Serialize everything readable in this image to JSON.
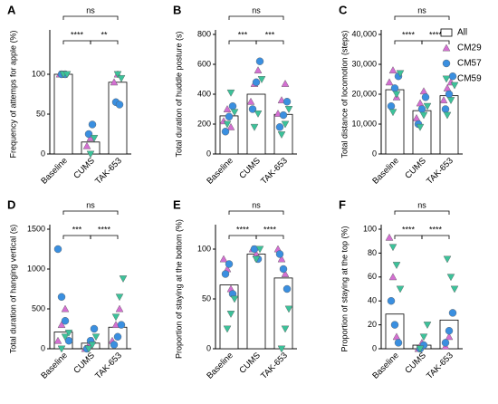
{
  "legend": {
    "items": [
      {
        "name": "All",
        "color": "#ffffff",
        "marker": "bar"
      },
      {
        "name": "CM29",
        "color": "#d46fd2",
        "marker": "triangle-up"
      },
      {
        "name": "CM57",
        "color": "#3a8fe0",
        "marker": "circle"
      },
      {
        "name": "CM59",
        "color": "#3cc29a",
        "marker": "triangle-down"
      }
    ]
  },
  "chart_data": [
    {
      "type": "bar",
      "panel": "A",
      "ylabel": "Frequency of attemps for apple (%)",
      "categories": [
        "Baseline",
        "CUMS",
        "TAK-653"
      ],
      "values": [
        100,
        15,
        90
      ],
      "ylim": [
        0,
        150
      ],
      "yticks": [
        0,
        50,
        100
      ],
      "points": [
        [
          [
            100,
            100
          ],
          [
            10,
            20
          ],
          [
            90,
            100
          ]
        ],
        [
          [
            100,
            100
          ],
          [
            25,
            37
          ],
          [
            65,
            62
          ]
        ],
        [
          [
            100,
            100
          ],
          [
            0,
            20
          ],
          [
            100,
            95
          ]
        ]
      ],
      "comparisons": [
        {
          "from": 0,
          "to": 1,
          "label": "****"
        },
        {
          "from": 1,
          "to": 2,
          "label": "**"
        },
        {
          "from": 0,
          "to": 2,
          "label": "ns"
        }
      ]
    },
    {
      "type": "bar",
      "panel": "B",
      "ylabel": "Total duration of huddle posture (s)",
      "categories": [
        "Baseline",
        "CUMS",
        "TAK-653"
      ],
      "values": [
        255,
        400,
        265
      ],
      "ylim": [
        0,
        800
      ],
      "yticks": [
        0,
        200,
        400,
        600,
        800
      ],
      "points": [
        [
          [
            220,
            300,
            180
          ],
          [
            350,
            470,
            560
          ],
          [
            270,
            360,
            470
          ]
        ],
        [
          [
            150,
            250,
            320
          ],
          [
            300,
            480,
            620
          ],
          [
            180,
            260,
            350
          ]
        ],
        [
          [
            200,
            410,
            280
          ],
          [
            180,
            270,
            500
          ],
          [
            130,
            200,
            300
          ]
        ]
      ],
      "comparisons": [
        {
          "from": 0,
          "to": 1,
          "label": "***"
        },
        {
          "from": 1,
          "to": 2,
          "label": "***"
        },
        {
          "from": 0,
          "to": 2,
          "label": "ns"
        }
      ]
    },
    {
      "type": "bar",
      "panel": "C",
      "ylabel": "Total distance of locomotion (steps)",
      "categories": [
        "Baseline",
        "CUMS",
        "TAK-653"
      ],
      "values": [
        21500,
        14500,
        19500
      ],
      "ylim": [
        0,
        40000
      ],
      "yticks": [
        0,
        {
          "value": 10000,
          "label": "10,000"
        },
        {
          "value": 20000,
          "label": "20,000"
        },
        {
          "value": 30000,
          "label": "30,000"
        },
        {
          "value": 40000,
          "label": "40,000"
        }
      ],
      "points": [
        [
          [
            24000,
            28000,
            19000
          ],
          [
            12000,
            17000,
            21000
          ],
          [
            18000,
            22000,
            24000
          ]
        ],
        [
          [
            16000,
            22000,
            26000
          ],
          [
            10000,
            15000,
            19000
          ],
          [
            15000,
            20000,
            26000
          ]
        ],
        [
          [
            14000,
            20000,
            27000
          ],
          [
            9000,
            13000,
            16000
          ],
          [
            13000,
            18000,
            23000
          ]
        ]
      ],
      "comparisons": [
        {
          "from": 0,
          "to": 1,
          "label": "****"
        },
        {
          "from": 1,
          "to": 2,
          "label": "****"
        },
        {
          "from": 0,
          "to": 2,
          "label": "ns"
        }
      ]
    },
    {
      "type": "bar",
      "panel": "D",
      "ylabel": "Total duration of hanging vertical (s)",
      "categories": [
        "Baseline",
        "CUMS",
        "TAK-653"
      ],
      "values": [
        210,
        70,
        270
      ],
      "ylim": [
        0,
        1500
      ],
      "yticks": [
        0,
        500,
        1000,
        1500
      ],
      "points": [
        [
          [
            100,
            300,
            500
          ],
          [
            0,
            40,
            100
          ],
          [
            100,
            300,
            500
          ]
        ],
        [
          [
            1250,
            650,
            350,
            100
          ],
          [
            0,
            100,
            250
          ],
          [
            50,
            150,
            300
          ]
        ],
        [
          [
            0,
            150,
            200
          ],
          [
            0,
            50,
            150
          ],
          [
            400,
            650,
            880
          ]
        ]
      ],
      "comparisons": [
        {
          "from": 0,
          "to": 1,
          "label": "***"
        },
        {
          "from": 1,
          "to": 2,
          "label": "****"
        },
        {
          "from": 0,
          "to": 2,
          "label": "ns"
        }
      ]
    },
    {
      "type": "bar",
      "panel": "E",
      "ylabel": "Proportion of staying at the bottom (%)",
      "categories": [
        "Baseline",
        "CUMS",
        "TAK-653"
      ],
      "values": [
        64,
        95,
        71
      ],
      "ylim": [
        0,
        120
      ],
      "yticks": [
        0,
        50,
        100
      ],
      "points": [
        [
          [
            90,
            80,
            60
          ],
          [
            100,
            95
          ],
          [
            100,
            90,
            75
          ]
        ],
        [
          [
            75,
            85,
            55
          ],
          [
            100,
            90
          ],
          [
            95,
            80,
            60
          ]
        ],
        [
          [
            20,
            35,
            50
          ],
          [
            90,
            100
          ],
          [
            0,
            20,
            40
          ]
        ]
      ],
      "comparisons": [
        {
          "from": 0,
          "to": 1,
          "label": "****"
        },
        {
          "from": 1,
          "to": 2,
          "label": "****"
        },
        {
          "from": 0,
          "to": 2,
          "label": "ns"
        }
      ]
    },
    {
      "type": "bar",
      "panel": "F",
      "ylabel": "Proportion of staying at the top (%)",
      "categories": [
        "Baseline",
        "CUMS",
        "TAK-653"
      ],
      "values": [
        29,
        3,
        24
      ],
      "ylim": [
        0,
        100
      ],
      "yticks": [
        0,
        20,
        40,
        60,
        80,
        100
      ],
      "points": [
        [
          [
            93,
            60,
            10
          ],
          [
            0,
            5
          ],
          [
            2,
            10
          ]
        ],
        [
          [
            40,
            20,
            5
          ],
          [
            0,
            3
          ],
          [
            5,
            15,
            30
          ]
        ],
        [
          [
            85,
            70,
            50
          ],
          [
            0,
            10,
            20
          ],
          [
            75,
            60,
            50
          ]
        ]
      ],
      "comparisons": [
        {
          "from": 0,
          "to": 1,
          "label": "****"
        },
        {
          "from": 1,
          "to": 2,
          "label": "****"
        },
        {
          "from": 0,
          "to": 2,
          "label": "ns"
        }
      ]
    }
  ]
}
